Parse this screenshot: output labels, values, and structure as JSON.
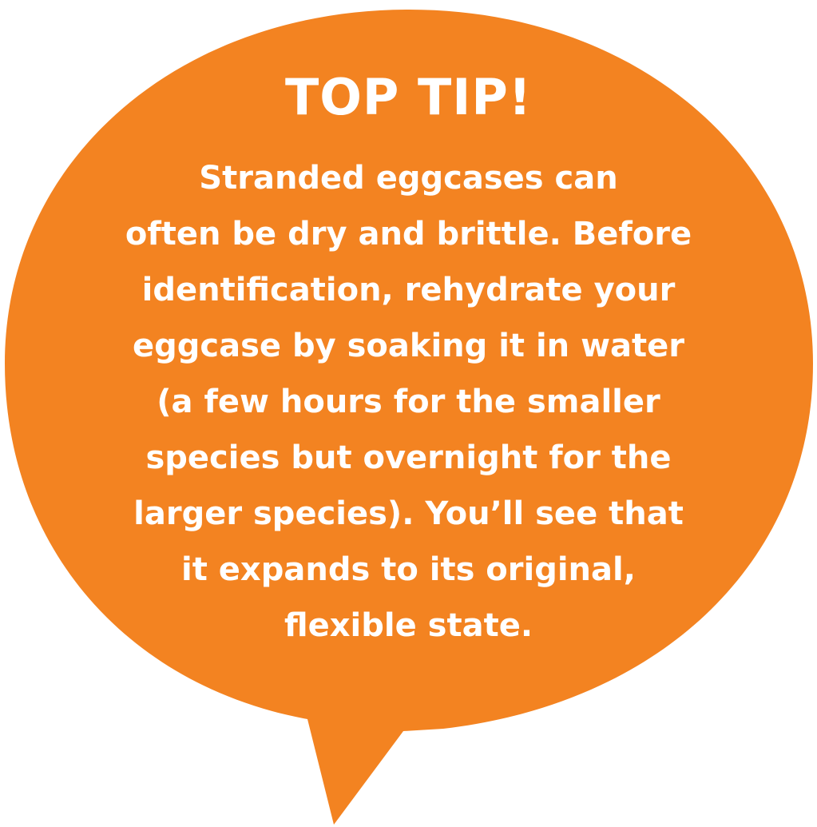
{
  "tip": {
    "title": "TOP TIP!",
    "lines": [
      "Stranded eggcases can",
      "often be dry and brittle. Before",
      "identification, rehydrate your",
      "eggcase by soaking it in water",
      "(a few hours for the smaller",
      "species but overnight for the",
      "larger species). You’ll see that",
      "it expands to its original,",
      "flexible state."
    ]
  },
  "colors": {
    "bubble": "#F38321",
    "text": "#FFFFFF"
  }
}
